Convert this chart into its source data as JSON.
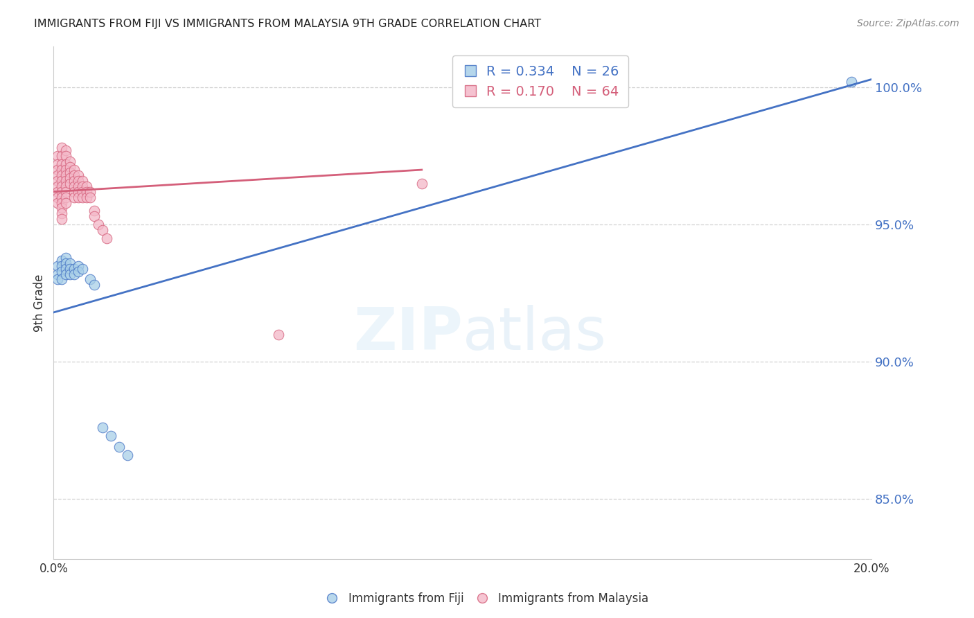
{
  "title": "IMMIGRANTS FROM FIJI VS IMMIGRANTS FROM MALAYSIA 9TH GRADE CORRELATION CHART",
  "source": "Source: ZipAtlas.com",
  "ylabel": "9th Grade",
  "ytick_labels": [
    "85.0%",
    "90.0%",
    "95.0%",
    "100.0%"
  ],
  "ytick_values": [
    0.85,
    0.9,
    0.95,
    1.0
  ],
  "xlim": [
    0.0,
    0.2
  ],
  "ylim": [
    0.828,
    1.015
  ],
  "legend_fiji_R": "0.334",
  "legend_fiji_N": "26",
  "legend_malaysia_R": "0.170",
  "legend_malaysia_N": "64",
  "fiji_color": "#a8cfe8",
  "malaysia_color": "#f4b8c8",
  "fiji_line_color": "#4472c4",
  "malaysia_line_color": "#d45f7a",
  "fiji_points_x": [
    0.001,
    0.001,
    0.001,
    0.002,
    0.002,
    0.002,
    0.002,
    0.003,
    0.003,
    0.003,
    0.003,
    0.004,
    0.004,
    0.004,
    0.005,
    0.005,
    0.006,
    0.006,
    0.007,
    0.009,
    0.01,
    0.012,
    0.014,
    0.016,
    0.018,
    0.195
  ],
  "fiji_points_y": [
    0.935,
    0.932,
    0.93,
    0.937,
    0.935,
    0.933,
    0.93,
    0.938,
    0.936,
    0.934,
    0.932,
    0.936,
    0.934,
    0.932,
    0.934,
    0.932,
    0.935,
    0.933,
    0.934,
    0.93,
    0.928,
    0.876,
    0.873,
    0.869,
    0.866,
    1.002
  ],
  "malaysia_points_x": [
    0.001,
    0.001,
    0.001,
    0.001,
    0.001,
    0.001,
    0.001,
    0.001,
    0.001,
    0.002,
    0.002,
    0.002,
    0.002,
    0.002,
    0.002,
    0.002,
    0.002,
    0.002,
    0.002,
    0.002,
    0.002,
    0.002,
    0.003,
    0.003,
    0.003,
    0.003,
    0.003,
    0.003,
    0.003,
    0.003,
    0.003,
    0.003,
    0.004,
    0.004,
    0.004,
    0.004,
    0.004,
    0.005,
    0.005,
    0.005,
    0.005,
    0.005,
    0.005,
    0.006,
    0.006,
    0.006,
    0.006,
    0.006,
    0.007,
    0.007,
    0.007,
    0.007,
    0.008,
    0.008,
    0.008,
    0.009,
    0.009,
    0.01,
    0.01,
    0.011,
    0.012,
    0.013,
    0.055,
    0.09
  ],
  "malaysia_points_y": [
    0.975,
    0.972,
    0.97,
    0.968,
    0.966,
    0.964,
    0.962,
    0.96,
    0.958,
    0.978,
    0.975,
    0.972,
    0.97,
    0.968,
    0.966,
    0.964,
    0.962,
    0.96,
    0.958,
    0.956,
    0.954,
    0.952,
    0.977,
    0.975,
    0.972,
    0.97,
    0.968,
    0.966,
    0.964,
    0.962,
    0.96,
    0.958,
    0.973,
    0.971,
    0.969,
    0.967,
    0.965,
    0.97,
    0.968,
    0.966,
    0.964,
    0.962,
    0.96,
    0.968,
    0.966,
    0.964,
    0.962,
    0.96,
    0.966,
    0.964,
    0.962,
    0.96,
    0.964,
    0.962,
    0.96,
    0.962,
    0.96,
    0.955,
    0.953,
    0.95,
    0.948,
    0.945,
    0.91,
    0.965
  ],
  "fiji_line_x0": 0.0,
  "fiji_line_y0": 0.918,
  "fiji_line_x1": 0.2,
  "fiji_line_y1": 1.003,
  "malaysia_line_x0": 0.0,
  "malaysia_line_y0": 0.962,
  "malaysia_line_x1": 0.09,
  "malaysia_line_y1": 0.97
}
